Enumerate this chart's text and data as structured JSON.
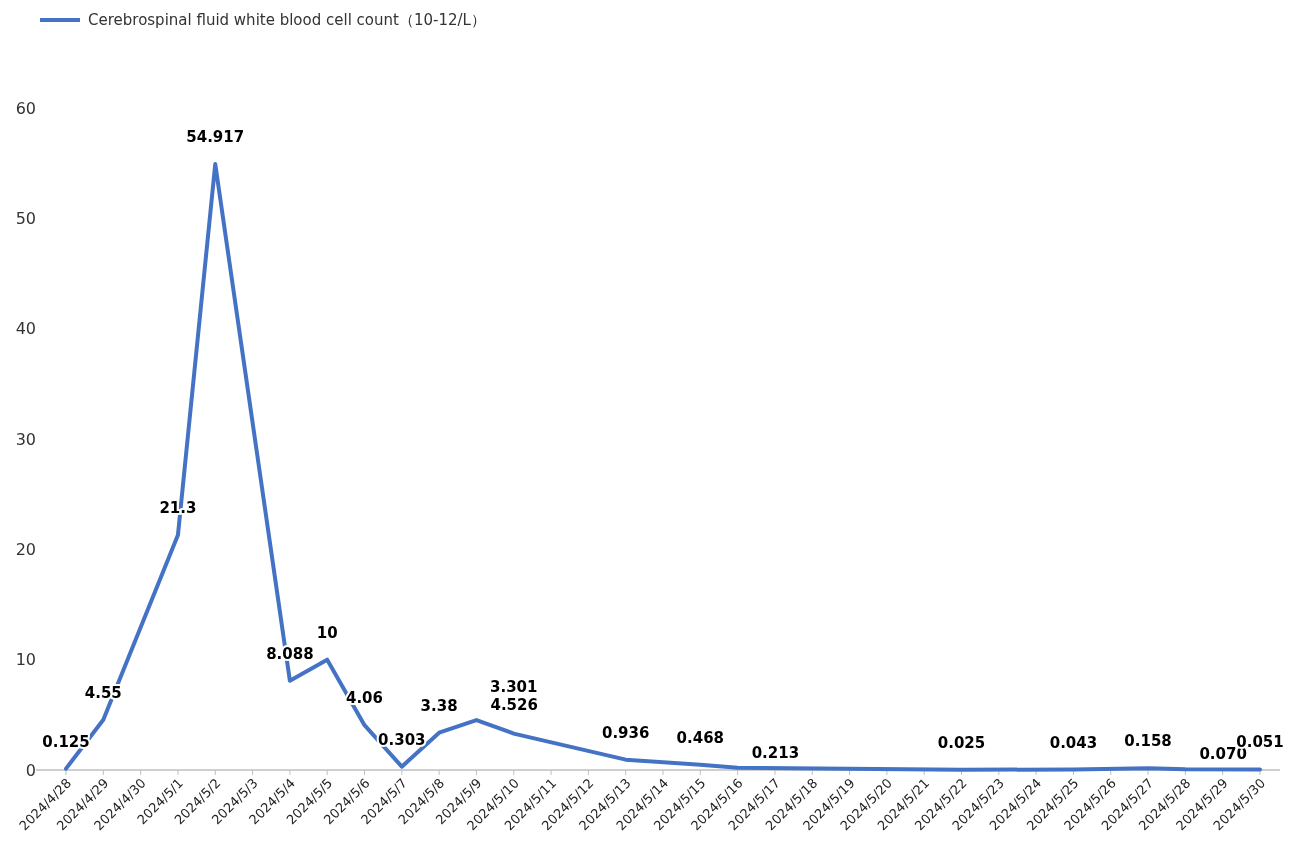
{
  "chart_data": {
    "type": "line",
    "categories": [
      "2024/4/28",
      "2024/4/29",
      "2024/4/30",
      "2024/5/1",
      "2024/5/2",
      "2024/5/3",
      "2024/5/4",
      "2024/5/5",
      "2024/5/6",
      "2024/5/7",
      "2024/5/8",
      "2024/5/9",
      "2024/5/10",
      "2024/5/11",
      "2024/5/12",
      "2024/5/13",
      "2024/5/14",
      "2024/5/15",
      "2024/5/16",
      "2024/5/17",
      "2024/5/18",
      "2024/5/19",
      "2024/5/20",
      "2024/5/21",
      "2024/5/22",
      "2024/5/23",
      "2024/5/24",
      "2024/5/25",
      "2024/5/26",
      "2024/5/27",
      "2024/5/28",
      "2024/5/29",
      "2024/5/30"
    ],
    "series": [
      {
        "name": "Cerebrospinal fluid white blood cell count（10-12/L）",
        "color": "#4472c4",
        "x": [
          "2024/4/28",
          "2024/4/29",
          "2024/5/1",
          "2024/5/2",
          "2024/5/4",
          "2024/5/5",
          "2024/5/6",
          "2024/5/7",
          "2024/5/8",
          "2024/5/9",
          "2024/5/10",
          "2024/5/13",
          "2024/5/15",
          "2024/5/16",
          "2024/5/22",
          "2024/5/25",
          "2024/5/27",
          "2024/5/28",
          "2024/5/30"
        ],
        "values": [
          0.125,
          4.55,
          21.3,
          54.917,
          8.088,
          10,
          4.06,
          0.303,
          3.38,
          4.526,
          3.301,
          0.936,
          0.468,
          0.213,
          0.025,
          0.043,
          0.158,
          0.07,
          0.051
        ],
        "value_labels": [
          "0.125",
          "4.55",
          "21.3",
          "54.917",
          "8.088",
          "10",
          "4.06",
          "0.303",
          "3.38",
          "4.526",
          "3.301",
          "0.936",
          "0.468",
          "0.213",
          "0.025",
          "0.043",
          "0.158",
          "0.070",
          "0.051"
        ]
      }
    ],
    "ylim": [
      0,
      60
    ],
    "yticks": [
      0,
      10,
      20,
      30,
      40,
      50,
      60
    ],
    "grid": false,
    "legend": "top left",
    "marker": "none",
    "line_style": "solid"
  }
}
